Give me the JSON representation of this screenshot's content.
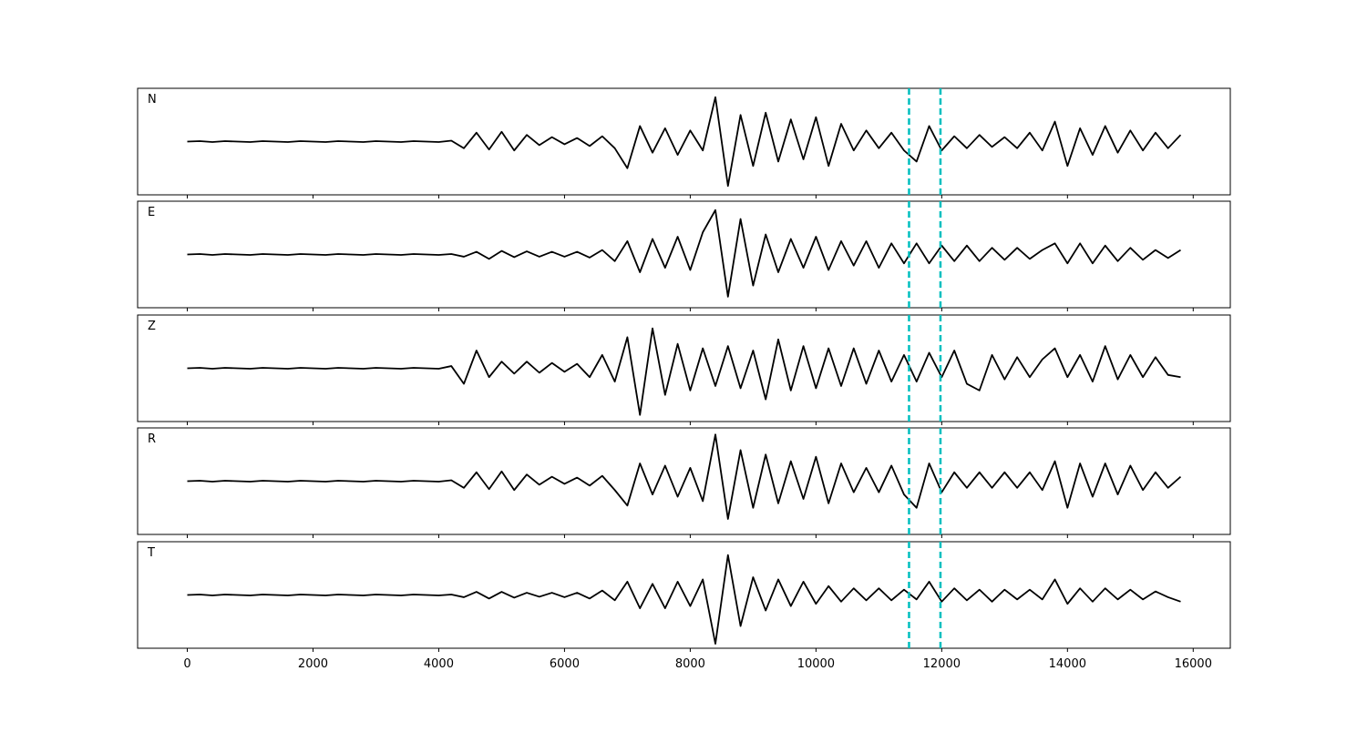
{
  "chart_data": {
    "type": "line",
    "x": [
      0,
      200,
      400,
      600,
      800,
      1000,
      1200,
      1400,
      1600,
      1800,
      2000,
      2200,
      2400,
      2600,
      2800,
      3000,
      3200,
      3400,
      3600,
      3800,
      4000,
      4200,
      4400,
      4600,
      4800,
      5000,
      5200,
      5400,
      5600,
      5800,
      6000,
      6200,
      6400,
      6600,
      6800,
      7000,
      7200,
      7400,
      7600,
      7800,
      8000,
      8200,
      8400,
      8600,
      8800,
      9000,
      9200,
      9400,
      9600,
      9800,
      10000,
      10200,
      10400,
      10600,
      10800,
      11000,
      11200,
      11400,
      11600,
      11800,
      12000,
      12200,
      12400,
      12600,
      12800,
      13000,
      13200,
      13400,
      13600,
      13800,
      14000,
      14200,
      14400,
      14600,
      14800,
      15000,
      15200,
      15400,
      15600,
      15800
    ],
    "series": [
      {
        "name": "N",
        "color": "#000000",
        "values": [
          0,
          0.01,
          -0.01,
          0.01,
          0,
          -0.01,
          0.01,
          0,
          -0.01,
          0.01,
          0,
          -0.01,
          0.01,
          0,
          -0.01,
          0.01,
          0,
          -0.01,
          0.01,
          0,
          -0.01,
          0.02,
          -0.15,
          0.2,
          -0.18,
          0.22,
          -0.2,
          0.15,
          -0.08,
          0.1,
          -0.06,
          0.08,
          -0.1,
          0.12,
          -0.15,
          -0.6,
          0.35,
          -0.25,
          0.3,
          -0.3,
          0.25,
          -0.2,
          1.0,
          -1.0,
          0.6,
          -0.55,
          0.65,
          -0.45,
          0.5,
          -0.4,
          0.55,
          -0.55,
          0.4,
          -0.2,
          0.25,
          -0.15,
          0.2,
          -0.2,
          -0.45,
          0.35,
          -0.2,
          0.12,
          -0.15,
          0.15,
          -0.12,
          0.1,
          -0.15,
          0.2,
          -0.2,
          0.45,
          -0.55,
          0.3,
          -0.3,
          0.35,
          -0.25,
          0.25,
          -0.2,
          0.2,
          -0.15,
          0.15
        ]
      },
      {
        "name": "E",
        "color": "#000000",
        "values": [
          0,
          0.01,
          -0.01,
          0.01,
          0,
          -0.01,
          0.01,
          0,
          -0.01,
          0.01,
          0,
          -0.01,
          0.01,
          0,
          -0.01,
          0.01,
          0,
          -0.01,
          0.01,
          0,
          -0.01,
          0.01,
          -0.05,
          0.06,
          -0.1,
          0.08,
          -0.06,
          0.07,
          -0.05,
          0.06,
          -0.05,
          0.06,
          -0.07,
          0.1,
          -0.15,
          0.3,
          -0.4,
          0.35,
          -0.3,
          0.4,
          -0.35,
          0.5,
          1.0,
          -0.95,
          0.8,
          -0.7,
          0.45,
          -0.4,
          0.35,
          -0.3,
          0.4,
          -0.35,
          0.3,
          -0.25,
          0.3,
          -0.3,
          0.25,
          -0.2,
          0.25,
          -0.2,
          0.2,
          -0.15,
          0.2,
          -0.15,
          0.15,
          -0.12,
          0.15,
          -0.1,
          0.1,
          0.25,
          -0.2,
          0.25,
          -0.2,
          0.2,
          -0.15,
          0.15,
          -0.12,
          0.1,
          -0.08,
          0.1
        ]
      },
      {
        "name": "Z",
        "color": "#000000",
        "values": [
          0,
          0.01,
          -0.01,
          0.01,
          0,
          -0.01,
          0.01,
          0,
          -0.01,
          0.01,
          0,
          -0.01,
          0.01,
          0,
          -0.01,
          0.01,
          0,
          -0.01,
          0.01,
          0,
          -0.01,
          0.05,
          -0.35,
          0.4,
          -0.2,
          0.15,
          -0.12,
          0.15,
          -0.1,
          0.12,
          -0.08,
          0.1,
          -0.2,
          0.3,
          -0.3,
          0.7,
          -1.05,
          0.9,
          -0.6,
          0.55,
          -0.5,
          0.45,
          -0.4,
          0.5,
          -0.45,
          0.4,
          -0.7,
          0.65,
          -0.5,
          0.5,
          -0.45,
          0.45,
          -0.4,
          0.45,
          -0.35,
          0.4,
          -0.3,
          0.3,
          -0.3,
          0.35,
          -0.2,
          0.4,
          -0.35,
          -0.5,
          0.3,
          -0.25,
          0.25,
          -0.2,
          0.2,
          0.45,
          -0.2,
          0.3,
          -0.3,
          0.5,
          -0.25,
          0.3,
          -0.2,
          0.25,
          -0.15,
          -0.2
        ]
      },
      {
        "name": "R",
        "color": "#000000",
        "values": [
          0,
          0.01,
          -0.01,
          0.01,
          0,
          -0.01,
          0.01,
          0,
          -0.01,
          0.01,
          0,
          -0.01,
          0.01,
          0,
          -0.01,
          0.01,
          0,
          -0.01,
          0.01,
          0,
          -0.01,
          0.02,
          -0.15,
          0.2,
          -0.18,
          0.22,
          -0.2,
          0.15,
          -0.08,
          0.1,
          -0.06,
          0.08,
          -0.1,
          0.12,
          -0.2,
          -0.55,
          0.4,
          -0.3,
          0.35,
          -0.35,
          0.3,
          -0.45,
          1.05,
          -0.85,
          0.7,
          -0.6,
          0.6,
          -0.5,
          0.45,
          -0.4,
          0.55,
          -0.5,
          0.4,
          -0.25,
          0.3,
          -0.25,
          0.35,
          -0.3,
          -0.6,
          0.4,
          -0.25,
          0.2,
          -0.15,
          0.2,
          -0.15,
          0.2,
          -0.15,
          0.2,
          -0.2,
          0.45,
          -0.6,
          0.4,
          -0.35,
          0.4,
          -0.3,
          0.35,
          -0.2,
          0.2,
          -0.15,
          0.1
        ]
      },
      {
        "name": "T",
        "color": "#000000",
        "values": [
          0,
          0.01,
          -0.01,
          0.01,
          0,
          -0.01,
          0.01,
          0,
          -0.01,
          0.01,
          0,
          -0.01,
          0.01,
          0,
          -0.01,
          0.01,
          0,
          -0.01,
          0.01,
          0,
          -0.01,
          0.01,
          -0.05,
          0.07,
          -0.08,
          0.07,
          -0.06,
          0.05,
          -0.04,
          0.05,
          -0.05,
          0.05,
          -0.08,
          0.1,
          -0.12,
          0.3,
          -0.3,
          0.25,
          -0.3,
          0.3,
          -0.25,
          0.35,
          -1.1,
          0.9,
          -0.7,
          0.4,
          -0.35,
          0.35,
          -0.25,
          0.3,
          -0.2,
          0.2,
          -0.15,
          0.15,
          -0.12,
          0.15,
          -0.12,
          0.12,
          -0.1,
          0.3,
          -0.15,
          0.15,
          -0.12,
          0.12,
          -0.15,
          0.12,
          -0.1,
          0.12,
          -0.1,
          0.35,
          -0.2,
          0.15,
          -0.15,
          0.15,
          -0.1,
          0.12,
          -0.1,
          0.08,
          -0.05,
          -0.15
        ]
      }
    ],
    "xlim": [
      -790,
      16590
    ],
    "ylim": [
      -1.2,
      1.2
    ],
    "xticks": [
      0,
      2000,
      4000,
      6000,
      8000,
      10000,
      12000,
      14000,
      16000
    ],
    "vlines": [
      11480,
      11980
    ],
    "vline_color": "#00bfbf"
  }
}
